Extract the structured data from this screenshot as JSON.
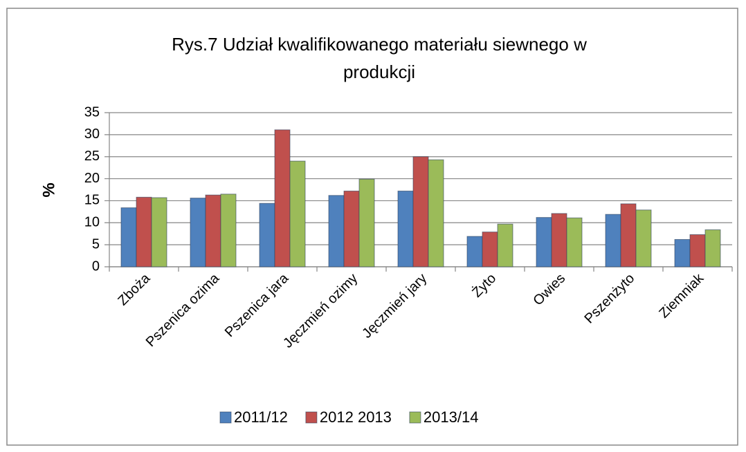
{
  "chart_data": {
    "type": "bar",
    "title": "Rys.7 Udział kwalifikowanego materiału siewnego w produkcji",
    "y_label": "%",
    "categories": [
      "Zboża",
      "Pszenica ozima",
      "Pszenica jara",
      "Jęczmień ozimy",
      "Jęczmień jary",
      "Żyto",
      "Owies",
      "Pszenżyto",
      "Ziemniak"
    ],
    "series": [
      {
        "name": "2011/12",
        "color": "#4f81bd",
        "values": [
          13.4,
          15.6,
          14.4,
          16.2,
          17.2,
          6.9,
          11.2,
          11.9,
          6.2
        ]
      },
      {
        "name": "2012 2013",
        "color": "#c0504d",
        "values": [
          15.8,
          16.3,
          31.1,
          17.2,
          25.0,
          7.9,
          12.1,
          14.3,
          7.3
        ]
      },
      {
        "name": "2013/14",
        "color": "#9bbb59",
        "values": [
          15.7,
          16.5,
          24.0,
          19.9,
          24.3,
          9.7,
          11.1,
          12.9,
          8.4
        ]
      }
    ],
    "ylim": [
      0,
      35
    ],
    "yticks": [
      0,
      5,
      10,
      15,
      20,
      25,
      30,
      35
    ],
    "grid": true,
    "legend": "bottom"
  }
}
